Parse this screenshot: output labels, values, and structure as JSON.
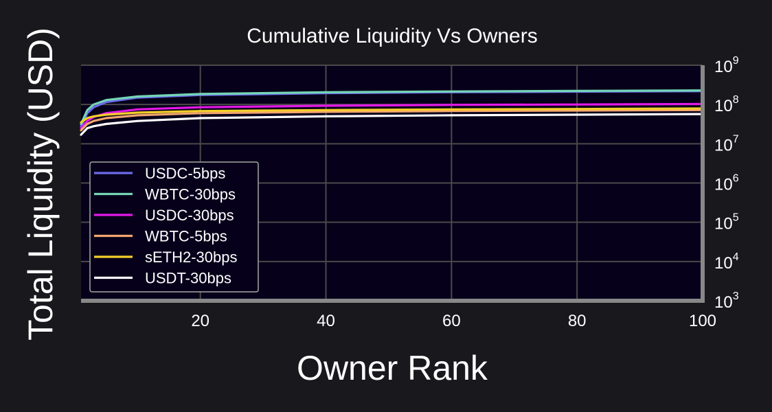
{
  "chart_data": {
    "type": "line",
    "title": "Cumulative Liquidity Vs Owners",
    "xlabel": "Owner Rank",
    "ylabel": "Total Liquidity (USD)",
    "y_axis_side": "right",
    "y_scale": "log",
    "xlim": [
      1,
      100
    ],
    "ylim": [
      1000,
      1000000000
    ],
    "x_ticks": [
      20,
      40,
      60,
      80,
      100
    ],
    "y_ticks": [
      {
        "base": "10",
        "exp": "3",
        "value": 1000
      },
      {
        "base": "10",
        "exp": "4",
        "value": 10000
      },
      {
        "base": "10",
        "exp": "5",
        "value": 100000
      },
      {
        "base": "10",
        "exp": "6",
        "value": 1000000
      },
      {
        "base": "10",
        "exp": "7",
        "value": 10000000
      },
      {
        "base": "10",
        "exp": "8",
        "value": 100000000
      },
      {
        "base": "10",
        "exp": "9",
        "value": 1000000000
      }
    ],
    "grid": true,
    "legend_position": "lower-left",
    "x": [
      1,
      2,
      3,
      5,
      10,
      20,
      40,
      60,
      80,
      100
    ],
    "series": [
      {
        "name": "USDC-5bps",
        "color": "#6b6bea",
        "values": [
          28000000,
          60000000,
          85000000,
          115000000,
          150000000,
          175000000,
          195000000,
          205000000,
          212000000,
          218000000
        ]
      },
      {
        "name": "WBTC-30bps",
        "color": "#74d6b4",
        "values": [
          32000000,
          72000000,
          100000000,
          130000000,
          160000000,
          185000000,
          205000000,
          215000000,
          222000000,
          228000000
        ]
      },
      {
        "name": "USDC-30bps",
        "color": "#e219e6",
        "values": [
          25000000,
          38000000,
          48000000,
          60000000,
          75000000,
          85000000,
          93000000,
          98000000,
          100000000,
          103000000
        ]
      },
      {
        "name": "WBTC-5bps",
        "color": "#f3a66e",
        "values": [
          22000000,
          32000000,
          38000000,
          45000000,
          53000000,
          60000000,
          65000000,
          68000000,
          70000000,
          72000000
        ]
      },
      {
        "name": "sETH2-30bps",
        "color": "#f4cf2a",
        "values": [
          35000000,
          45000000,
          50000000,
          55000000,
          62000000,
          68000000,
          72000000,
          75000000,
          77000000,
          79000000
        ]
      },
      {
        "name": "USDT-30bps",
        "color": "#ffffff",
        "values": [
          17000000,
          25000000,
          28000000,
          32000000,
          38000000,
          45000000,
          50000000,
          53000000,
          55000000,
          57000000
        ]
      }
    ]
  },
  "colors": {
    "background": "#19181d",
    "plot_background": "#07001a",
    "grid": "#4a4a4a",
    "axis_spine": "#888888"
  }
}
